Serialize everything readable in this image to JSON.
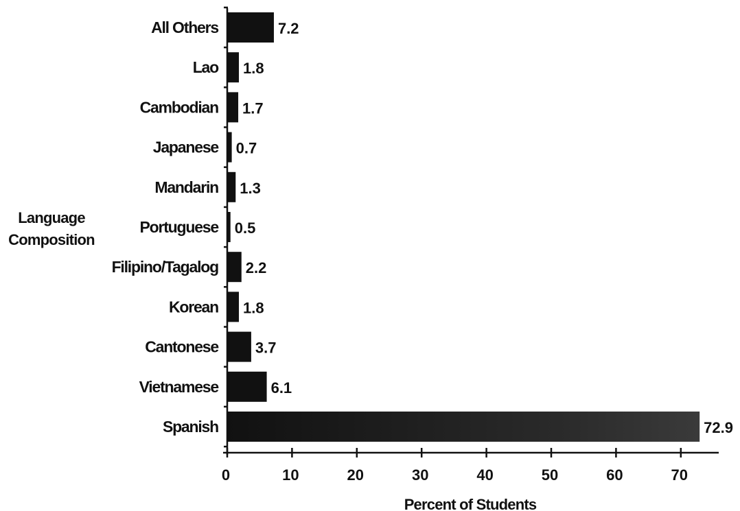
{
  "chart_data": {
    "type": "bar",
    "orientation": "horizontal",
    "title": "",
    "xlabel": "Percent of Students",
    "ylabel_lines": [
      "Language",
      "Composition"
    ],
    "categories": [
      "All Others",
      "Lao",
      "Cambodian",
      "Japanese",
      "Mandarin",
      "Portuguese",
      "Filipino/Tagalog",
      "Korean",
      "Cantonese",
      "Vietnamese",
      "Spanish"
    ],
    "values": [
      7.2,
      1.8,
      1.7,
      0.7,
      1.3,
      0.5,
      2.2,
      1.8,
      3.7,
      6.1,
      72.9
    ],
    "value_labels": [
      "7.2",
      "1.8",
      "1.7",
      "0.7",
      "1.3",
      "0.5",
      "2.2",
      "1.8",
      "3.7",
      "6.1",
      "72.9"
    ],
    "xticks": [
      0,
      10,
      20,
      30,
      40,
      50,
      60,
      70
    ],
    "xtick_labels": [
      "0",
      "10",
      "20",
      "30",
      "40",
      "50",
      "60",
      "70"
    ],
    "xlim": [
      0,
      75
    ],
    "grid": false,
    "legend": "none",
    "bar_color": "#111111",
    "highlight_color": "#2a2a2a"
  }
}
